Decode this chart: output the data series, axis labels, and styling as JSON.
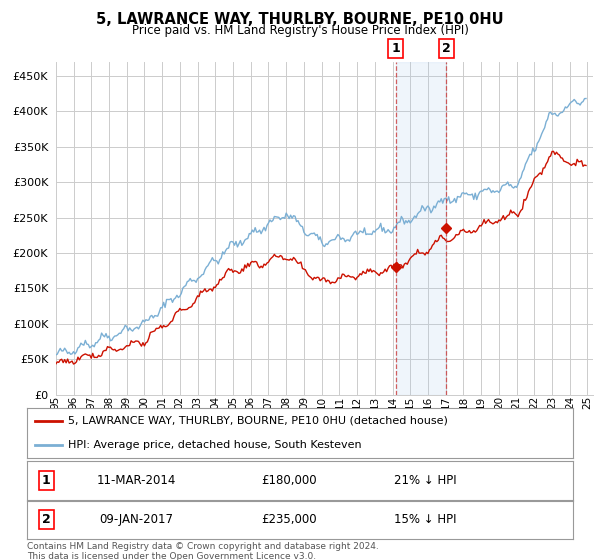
{
  "title": "5, LAWRANCE WAY, THURLBY, BOURNE, PE10 0HU",
  "subtitle": "Price paid vs. HM Land Registry's House Price Index (HPI)",
  "ytick_values": [
    0,
    50000,
    100000,
    150000,
    200000,
    250000,
    300000,
    350000,
    400000,
    450000
  ],
  "ylim": [
    0,
    470000
  ],
  "xlim_start": 1995.0,
  "xlim_end": 2025.3,
  "sale1_x": 2014.19,
  "sale1_y": 180000,
  "sale2_x": 2017.03,
  "sale2_y": 235000,
  "sale1_label": "11-MAR-2014",
  "sale1_price": "£180,000",
  "sale1_hpi": "21% ↓ HPI",
  "sale2_label": "09-JAN-2017",
  "sale2_price": "£235,000",
  "sale2_hpi": "15% ↓ HPI",
  "legend1": "5, LAWRANCE WAY, THURLBY, BOURNE, PE10 0HU (detached house)",
  "legend2": "HPI: Average price, detached house, South Kesteven",
  "footer": "Contains HM Land Registry data © Crown copyright and database right 2024.\nThis data is licensed under the Open Government Licence v3.0.",
  "hpi_color": "#7bafd4",
  "price_color": "#cc1100",
  "bg_color": "#ffffff",
  "grid_color": "#cccccc",
  "highlight_bg": "#ddeeff"
}
